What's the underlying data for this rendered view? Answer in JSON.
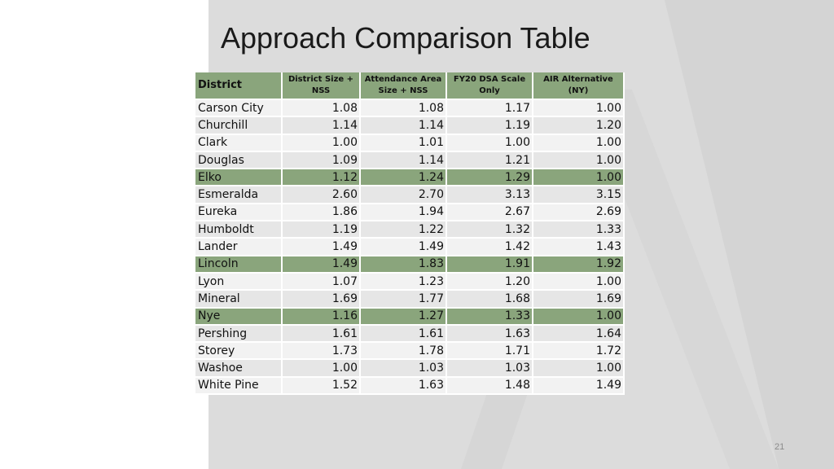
{
  "slide": {
    "title": "Approach Comparison Table",
    "page_number": "21",
    "accent_color": "#8aa57c",
    "panel_color": "#dcdcdc"
  },
  "table": {
    "headers": [
      "District",
      "District Size + NSS",
      "Attendance Area Size + NSS",
      "FY20 DSA Scale Only",
      "AIR Alternative (NY)"
    ],
    "rows": [
      {
        "district": "Carson City",
        "values": [
          "1.08",
          "1.08",
          "1.17",
          "1.00"
        ],
        "highlight": false
      },
      {
        "district": "Churchill",
        "values": [
          "1.14",
          "1.14",
          "1.19",
          "1.20"
        ],
        "highlight": false
      },
      {
        "district": "Clark",
        "values": [
          "1.00",
          "1.01",
          "1.00",
          "1.00"
        ],
        "highlight": false
      },
      {
        "district": "Douglas",
        "values": [
          "1.09",
          "1.14",
          "1.21",
          "1.00"
        ],
        "highlight": false
      },
      {
        "district": "Elko",
        "values": [
          "1.12",
          "1.24",
          "1.29",
          "1.00"
        ],
        "highlight": true
      },
      {
        "district": "Esmeralda",
        "values": [
          "2.60",
          "2.70",
          "3.13",
          "3.15"
        ],
        "highlight": false
      },
      {
        "district": "Eureka",
        "values": [
          "1.86",
          "1.94",
          "2.67",
          "2.69"
        ],
        "highlight": false
      },
      {
        "district": "Humboldt",
        "values": [
          "1.19",
          "1.22",
          "1.32",
          "1.33"
        ],
        "highlight": false
      },
      {
        "district": "Lander",
        "values": [
          "1.49",
          "1.49",
          "1.42",
          "1.43"
        ],
        "highlight": false
      },
      {
        "district": "Lincoln",
        "values": [
          "1.49",
          "1.83",
          "1.91",
          "1.92"
        ],
        "highlight": true
      },
      {
        "district": "Lyon",
        "values": [
          "1.07",
          "1.23",
          "1.20",
          "1.00"
        ],
        "highlight": false
      },
      {
        "district": "Mineral",
        "values": [
          "1.69",
          "1.77",
          "1.68",
          "1.69"
        ],
        "highlight": false
      },
      {
        "district": "Nye",
        "values": [
          "1.16",
          "1.27",
          "1.33",
          "1.00"
        ],
        "highlight": true
      },
      {
        "district": "Pershing",
        "values": [
          "1.61",
          "1.61",
          "1.63",
          "1.64"
        ],
        "highlight": false
      },
      {
        "district": "Storey",
        "values": [
          "1.73",
          "1.78",
          "1.71",
          "1.72"
        ],
        "highlight": false
      },
      {
        "district": "Washoe",
        "values": [
          "1.00",
          "1.03",
          "1.03",
          "1.00"
        ],
        "highlight": false
      },
      {
        "district": "White Pine",
        "values": [
          "1.52",
          "1.63",
          "1.48",
          "1.49"
        ],
        "highlight": false
      }
    ]
  }
}
